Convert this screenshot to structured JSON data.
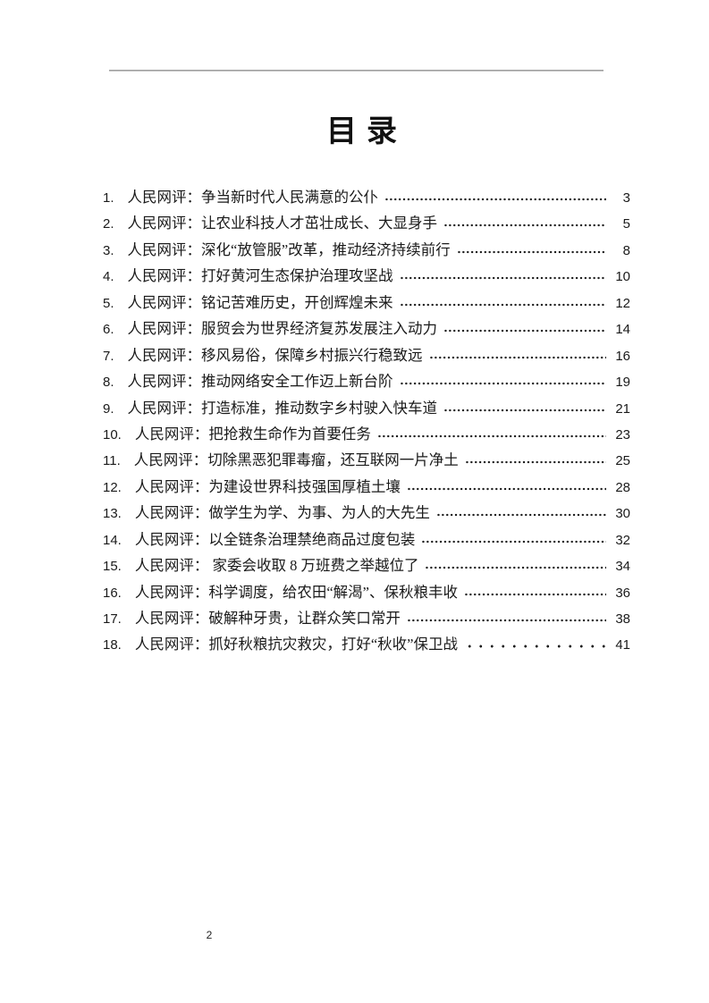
{
  "page": {
    "title": "目录",
    "footer_page_number": "2"
  },
  "toc": {
    "items": [
      {
        "num": "1.",
        "label": "人民网评：争当新时代人民满意的公仆",
        "page": "3",
        "leader": "normal"
      },
      {
        "num": "2.",
        "label": "人民网评：让农业科技人才茁壮成长、大显身手",
        "page": "5",
        "leader": "normal"
      },
      {
        "num": "3.",
        "label": "人民网评：深化“放管服”改革，推动经济持续前行",
        "page": "8",
        "leader": "normal"
      },
      {
        "num": "4.",
        "label": "人民网评：打好黄河生态保护治理攻坚战",
        "page": "10",
        "leader": "normal"
      },
      {
        "num": "5.",
        "label": "人民网评：铭记苦难历史，开创辉煌未来",
        "page": "12",
        "leader": "normal"
      },
      {
        "num": "6.",
        "label": "人民网评：服贸会为世界经济复苏发展注入动力",
        "page": "14",
        "leader": "normal"
      },
      {
        "num": "7.",
        "label": "人民网评：移风易俗，保障乡村振兴行稳致远",
        "page": "16",
        "leader": "normal"
      },
      {
        "num": "8.",
        "label": "人民网评：推动网络安全工作迈上新台阶",
        "page": "19",
        "leader": "normal"
      },
      {
        "num": "9.",
        "label": "人民网评：打造标准，推动数字乡村驶入快车道",
        "page": "21",
        "leader": "normal"
      },
      {
        "num": "10.",
        "label": "人民网评：把抢救生命作为首要任务",
        "page": "23",
        "leader": "normal"
      },
      {
        "num": "11.",
        "label": "人民网评：切除黑恶犯罪毒瘤，还互联网一片净土",
        "page": "25",
        "leader": "normal"
      },
      {
        "num": "12.",
        "label": "人民网评：为建设世界科技强国厚植土壤",
        "page": "28",
        "leader": "normal"
      },
      {
        "num": "13.",
        "label": "人民网评：做学生为学、为事、为人的大先生",
        "page": "30",
        "leader": "normal"
      },
      {
        "num": "14.",
        "label": "人民网评：以全链条治理禁绝商品过度包装",
        "page": "32",
        "leader": "normal"
      },
      {
        "num": "15.",
        "label": "人民网评： 家委会收取 8 万班费之举越位了",
        "page": "34",
        "leader": "normal"
      },
      {
        "num": "16.",
        "label": "人民网评：科学调度，给农田“解渴”、保秋粮丰收",
        "page": "36",
        "leader": "normal"
      },
      {
        "num": "17.",
        "label": "人民网评：破解种牙贵，让群众笑口常开",
        "page": "38",
        "leader": "normal"
      },
      {
        "num": "18.",
        "label": "人民网评：抓好秋粮抗灾救灾，打好“秋收”保卫战",
        "page": "41",
        "leader": "wide"
      }
    ]
  }
}
